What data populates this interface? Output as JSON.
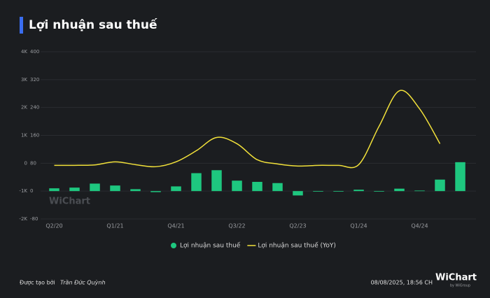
{
  "chart_data": {
    "type": "bar-line",
    "title": "Lợi nhuận sau thuế",
    "categories": [
      "Q2/20",
      null,
      null,
      "Q1/21",
      null,
      null,
      "Q4/21",
      null,
      null,
      "Q3/22",
      null,
      null,
      "Q2/23",
      null,
      null,
      "Q1/24",
      null,
      null,
      "Q4/24",
      null,
      null
    ],
    "series": [
      {
        "name": "Lợi nhuận sau thuế",
        "type": "bar",
        "axis": "y2",
        "color": "#1ec77f",
        "values": [
          8,
          10,
          21.5,
          16,
          5.5,
          -3,
          13.5,
          51.5,
          60,
          30,
          26.5,
          23,
          -12.5,
          -0.5,
          -0.5,
          4,
          -0.3,
          7,
          1.5,
          33,
          83
        ]
      },
      {
        "name": "Lợi nhuận sau thuế (YoY)",
        "type": "line",
        "axis": "y",
        "color": "#f2e13a",
        "values": [
          -75,
          -75,
          -60,
          50,
          -50,
          -125,
          50,
          450,
          925,
          700,
          125,
          -25,
          -100,
          -75,
          -75,
          -50,
          1325,
          2600,
          1950,
          700,
          null
        ]
      }
    ],
    "ylim": [
      -2000,
      4000
    ],
    "yticks": [
      {
        "value": -2000,
        "label": "-2K"
      },
      {
        "value": -1000,
        "label": "-1K"
      },
      0,
      {
        "value": 1000,
        "label": "1K"
      },
      {
        "value": 2000,
        "label": "2K"
      },
      {
        "value": 3000,
        "label": "3K"
      },
      {
        "value": 4000,
        "label": "4K"
      }
    ],
    "y2lim": [
      -80,
      400
    ],
    "y2ticks": [
      -80,
      0,
      80,
      160,
      240,
      320,
      400
    ],
    "grid": true,
    "legend": "bottom",
    "watermark": "WiChart",
    "footer": {
      "created_by": "Được tạo bởi",
      "author": "Trần Đức Quỳnh",
      "timestamp": "08/08/2025, 18:56 CH",
      "logo": "WiChart",
      "logo_sub": "by WiGroup"
    }
  }
}
